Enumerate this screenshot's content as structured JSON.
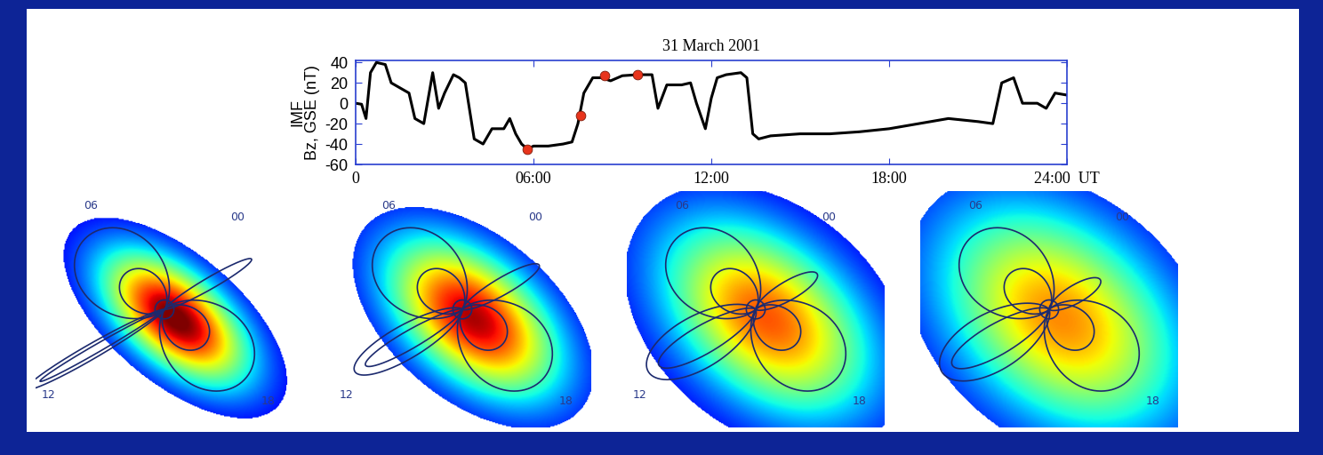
{
  "chart_data": {
    "type": "line",
    "title": "31 March 2001",
    "y_label": "IMF\nBz, GSE (nT)",
    "xlim": [
      0,
      24
    ],
    "ylim": [
      -60,
      42
    ],
    "xticks": [
      0,
      {
        "value": 6,
        "label": "06:00"
      },
      {
        "value": 12,
        "label": "12:00"
      },
      {
        "value": 18,
        "label": "18:00"
      },
      {
        "value": 24,
        "label": "24:00  UT"
      }
    ],
    "yticks": [
      -60,
      -40,
      -20,
      0,
      20,
      40
    ],
    "series": [
      {
        "type": "line",
        "color": "#000000",
        "x": [
          0,
          0.2,
          0.35,
          0.5,
          0.7,
          1.0,
          1.2,
          1.5,
          1.8,
          2.0,
          2.3,
          2.6,
          2.8,
          3.0,
          3.3,
          3.5,
          3.7,
          4.0,
          4.3,
          4.6,
          5.0,
          5.2,
          5.4,
          5.6,
          5.8,
          6.0,
          6.5,
          7.0,
          7.3,
          7.5,
          7.7,
          8.0,
          8.3,
          8.6,
          9.0,
          9.5,
          10.0,
          10.2,
          10.5,
          11.0,
          11.3,
          11.5,
          11.8,
          12.0,
          12.2,
          12.5,
          13.0,
          13.2,
          13.4,
          13.6,
          14.0,
          15.0,
          16.0,
          17.0,
          18.0,
          19.0,
          20.0,
          21.0,
          21.5,
          21.8,
          22.2,
          22.5,
          23.0,
          23.3,
          23.6,
          24.0
        ],
        "values": [
          0,
          -1,
          -15,
          30,
          40,
          38,
          20,
          15,
          10,
          -15,
          -20,
          30,
          -5,
          10,
          28,
          25,
          20,
          -35,
          -40,
          -25,
          -25,
          -15,
          -30,
          -40,
          -45,
          -42,
          -42,
          -40,
          -38,
          -20,
          10,
          25,
          25,
          22,
          27,
          28,
          28,
          -5,
          18,
          18,
          20,
          0,
          -25,
          5,
          25,
          28,
          30,
          25,
          -30,
          -35,
          -32,
          -30,
          -30,
          -28,
          -25,
          -20,
          -15,
          -18,
          -20,
          20,
          25,
          0,
          0,
          -5,
          10,
          8
        ]
      },
      {
        "type": "scatter",
        "color": "#e8341c",
        "marker": "o",
        "x": [
          5.8,
          7.6,
          8.4,
          9.5
        ],
        "values": [
          -45,
          -12,
          27,
          28
        ]
      }
    ]
  },
  "images": [
    {
      "labels": [
        "06",
        "00",
        "12",
        "18"
      ]
    },
    {
      "labels": [
        "06",
        "00",
        "12",
        "18"
      ]
    },
    {
      "labels": [
        "06",
        "00",
        "12",
        "18"
      ]
    },
    {
      "labels": [
        "06",
        "00",
        null,
        "18"
      ]
    }
  ]
}
